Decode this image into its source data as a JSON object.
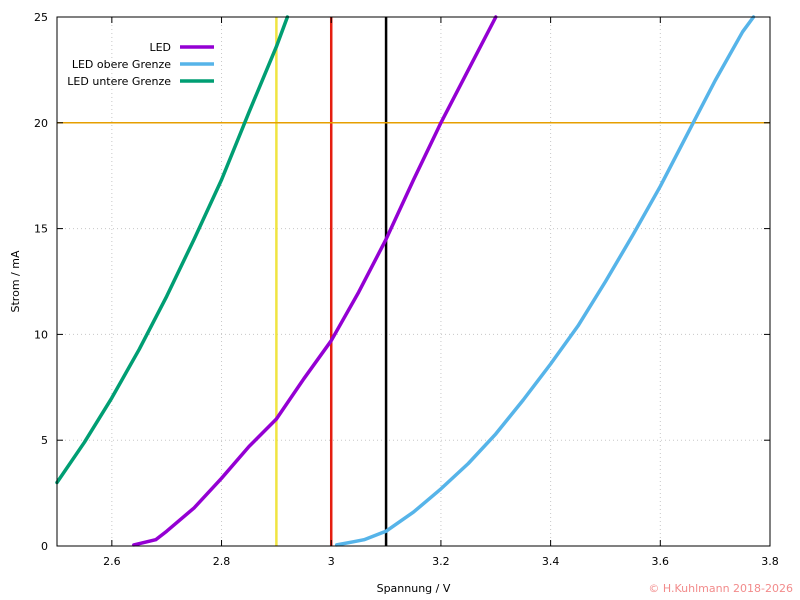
{
  "chart_data": {
    "type": "line",
    "xlabel": "Spannung / V",
    "ylabel": "Strom / mA",
    "xlim": [
      2.5,
      3.8
    ],
    "ylim": [
      0,
      25
    ],
    "x_ticks": [
      "2.6",
      "2.8",
      "3",
      "3.2",
      "3.4",
      "3.6",
      "3.8"
    ],
    "y_ticks": [
      "0",
      "5",
      "10",
      "15",
      "20",
      "25"
    ],
    "grid": true,
    "legend_position": "top-left",
    "series": [
      {
        "name": "LED",
        "color": "#9400d3",
        "x": [
          2.64,
          2.68,
          2.7,
          2.75,
          2.8,
          2.85,
          2.9,
          2.95,
          3.0,
          3.05,
          3.1,
          3.15,
          3.2,
          3.25,
          3.3
        ],
        "y": [
          0.05,
          0.3,
          0.7,
          1.8,
          3.2,
          4.7,
          6.0,
          7.9,
          9.7,
          12.0,
          14.5,
          17.3,
          20.0,
          22.5,
          25.0
        ]
      },
      {
        "name": "LED obere Grenze",
        "color": "#56b4e9",
        "x": [
          3.01,
          3.04,
          3.06,
          3.1,
          3.15,
          3.2,
          3.25,
          3.3,
          3.35,
          3.4,
          3.45,
          3.5,
          3.55,
          3.6,
          3.65,
          3.7,
          3.75,
          3.77
        ],
        "y": [
          0.05,
          0.2,
          0.3,
          0.7,
          1.6,
          2.7,
          3.9,
          5.3,
          6.9,
          8.6,
          10.4,
          12.5,
          14.7,
          17.0,
          19.5,
          22.0,
          24.3,
          25.0
        ]
      },
      {
        "name": "LED untere Grenze",
        "color": "#009e73",
        "x": [
          2.5,
          2.55,
          2.6,
          2.65,
          2.7,
          2.75,
          2.8,
          2.85,
          2.9,
          2.92
        ],
        "y": [
          3.0,
          4.9,
          7.0,
          9.3,
          11.8,
          14.5,
          17.3,
          20.5,
          23.6,
          25.0
        ]
      }
    ],
    "reference_lines": [
      {
        "orientation": "vertical",
        "value": 2.9,
        "color": "#f0e442"
      },
      {
        "orientation": "vertical",
        "value": 3.0,
        "color": "#e51e10"
      },
      {
        "orientation": "vertical",
        "value": 3.1,
        "color": "#000000"
      },
      {
        "orientation": "horizontal",
        "value": 20,
        "color": "#e69f00"
      }
    ]
  },
  "copyright": {
    "text": "© H.Kuhlmann 2018-2026",
    "color": "#f28b8b"
  }
}
